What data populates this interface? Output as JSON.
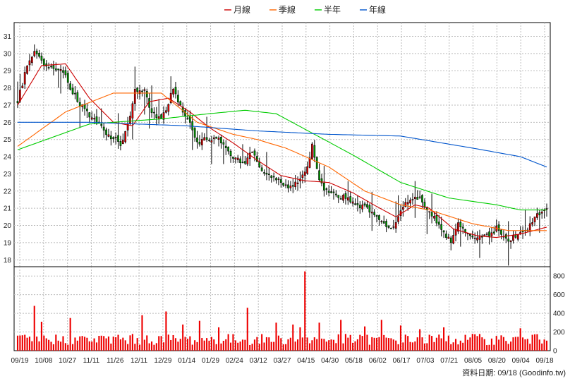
{
  "chart_data": {
    "type": "candlestick",
    "legend": [
      {
        "name": "月線",
        "color": "#cc0000"
      },
      {
        "name": "季線",
        "color": "#ff6600"
      },
      {
        "name": "半年",
        "color": "#00cc00"
      },
      {
        "name": "年線",
        "color": "#0055cc"
      }
    ],
    "legend_placement": "top-center",
    "grid": true,
    "price_axis": {
      "ticks": [
        18,
        19,
        20,
        21,
        22,
        23,
        24,
        25,
        26,
        27,
        28,
        29,
        30,
        31
      ],
      "ylim": [
        17.6,
        31.8
      ],
      "side": "left"
    },
    "volume_axis": {
      "ticks": [
        0,
        200,
        400,
        600,
        800
      ],
      "ylim": [
        0,
        900
      ],
      "side": "right"
    },
    "x_tick_labels": [
      "09/19",
      "10/08",
      "10/27",
      "11/11",
      "11/26",
      "12/11",
      "12/29",
      "01/14",
      "01/29",
      "02/24",
      "03/12",
      "03/27",
      "04/15",
      "04/30",
      "05/18",
      "06/02",
      "06/17",
      "07/03",
      "07/21",
      "08/05",
      "08/20",
      "09/04",
      "09/18"
    ],
    "price_path": [
      [
        0,
        27.2
      ],
      [
        3,
        28.8
      ],
      [
        7,
        30.2
      ],
      [
        11,
        29.4
      ],
      [
        15,
        29.2
      ],
      [
        19,
        29.0
      ],
      [
        22,
        28.0
      ],
      [
        26,
        27.0
      ],
      [
        30,
        26.4
      ],
      [
        34,
        26.0
      ],
      [
        38,
        25.2
      ],
      [
        43,
        24.8
      ],
      [
        46,
        25.8
      ],
      [
        49,
        27.9
      ],
      [
        53,
        28.0
      ],
      [
        56,
        26.5
      ],
      [
        60,
        26.2
      ],
      [
        62,
        26.8
      ],
      [
        65,
        27.9
      ],
      [
        68,
        27.0
      ],
      [
        72,
        26.0
      ],
      [
        75,
        24.8
      ],
      [
        80,
        25.1
      ],
      [
        85,
        24.9
      ],
      [
        90,
        24.0
      ],
      [
        95,
        23.6
      ],
      [
        98,
        24.3
      ],
      [
        102,
        23.2
      ],
      [
        108,
        22.8
      ],
      [
        113,
        22.3
      ],
      [
        117,
        22.5
      ],
      [
        120,
        23.0
      ],
      [
        123,
        24.6
      ],
      [
        126,
        22.5
      ],
      [
        130,
        21.8
      ],
      [
        135,
        21.7
      ],
      [
        140,
        21.3
      ],
      [
        145,
        21.0
      ],
      [
        148,
        20.8
      ],
      [
        152,
        20.2
      ],
      [
        156,
        19.8
      ],
      [
        159,
        20.5
      ],
      [
        162,
        21.2
      ],
      [
        165,
        21.6
      ],
      [
        168,
        21.7
      ],
      [
        170,
        21.2
      ],
      [
        173,
        20.7
      ],
      [
        176,
        20.1
      ],
      [
        179,
        19.4
      ],
      [
        181,
        19.0
      ],
      [
        184,
        20.1
      ],
      [
        188,
        19.6
      ],
      [
        192,
        19.2
      ],
      [
        196,
        19.4
      ],
      [
        200,
        19.8
      ],
      [
        204,
        19.1
      ],
      [
        208,
        19.3
      ],
      [
        212,
        19.6
      ],
      [
        215,
        20.3
      ],
      [
        218,
        20.7
      ],
      [
        221,
        20.9
      ]
    ],
    "ma": {
      "月線": [
        [
          0,
          27.0
        ],
        [
          10,
          29.3
        ],
        [
          20,
          29.4
        ],
        [
          30,
          27.4
        ],
        [
          40,
          26.0
        ],
        [
          48,
          25.8
        ],
        [
          55,
          27.2
        ],
        [
          63,
          27.4
        ],
        [
          72,
          26.6
        ],
        [
          80,
          25.7
        ],
        [
          90,
          24.8
        ],
        [
          100,
          23.8
        ],
        [
          110,
          22.9
        ],
        [
          120,
          22.6
        ],
        [
          130,
          22.5
        ],
        [
          140,
          21.9
        ],
        [
          150,
          21.1
        ],
        [
          158,
          20.5
        ],
        [
          166,
          21.2
        ],
        [
          172,
          21.0
        ],
        [
          182,
          19.8
        ],
        [
          192,
          19.4
        ],
        [
          200,
          19.3
        ],
        [
          210,
          19.5
        ],
        [
          221,
          19.9
        ]
      ],
      "季線": [
        [
          0,
          24.6
        ],
        [
          20,
          26.6
        ],
        [
          40,
          27.7
        ],
        [
          60,
          27.7
        ],
        [
          75,
          26.0
        ],
        [
          90,
          25.3
        ],
        [
          100,
          25.0
        ],
        [
          112,
          24.5
        ],
        [
          130,
          23.4
        ],
        [
          145,
          22.0
        ],
        [
          160,
          21.2
        ],
        [
          172,
          20.9
        ],
        [
          190,
          20.1
        ],
        [
          205,
          19.7
        ],
        [
          221,
          19.7
        ]
      ],
      "半年": [
        [
          0,
          24.4
        ],
        [
          30,
          25.9
        ],
        [
          60,
          26.2
        ],
        [
          80,
          26.5
        ],
        [
          95,
          26.7
        ],
        [
          108,
          26.5
        ],
        [
          120,
          25.6
        ],
        [
          140,
          24.1
        ],
        [
          160,
          22.5
        ],
        [
          180,
          21.6
        ],
        [
          200,
          21.2
        ],
        [
          210,
          20.9
        ],
        [
          221,
          20.9
        ]
      ],
      "年線": [
        [
          0,
          26.0
        ],
        [
          30,
          26.0
        ],
        [
          70,
          25.8
        ],
        [
          100,
          25.5
        ],
        [
          130,
          25.3
        ],
        [
          160,
          25.2
        ],
        [
          190,
          24.5
        ],
        [
          210,
          24.0
        ],
        [
          221,
          23.4
        ]
      ]
    },
    "volume_spikes": [
      [
        7,
        480
      ],
      [
        10,
        310
      ],
      [
        22,
        350
      ],
      [
        42,
        170
      ],
      [
        52,
        380
      ],
      [
        62,
        420
      ],
      [
        69,
        280
      ],
      [
        76,
        320
      ],
      [
        84,
        250
      ],
      [
        96,
        460
      ],
      [
        108,
        300
      ],
      [
        115,
        280
      ],
      [
        118,
        250
      ],
      [
        120,
        850
      ],
      [
        126,
        300
      ],
      [
        135,
        330
      ],
      [
        145,
        260
      ],
      [
        152,
        330
      ],
      [
        160,
        270
      ],
      [
        168,
        230
      ],
      [
        178,
        250
      ],
      [
        190,
        180
      ],
      [
        210,
        240
      ],
      [
        215,
        170
      ],
      [
        220,
        120
      ]
    ],
    "n_bars": 222,
    "source_label": "資料日期: 09/18 (Goodinfo.tw)"
  }
}
